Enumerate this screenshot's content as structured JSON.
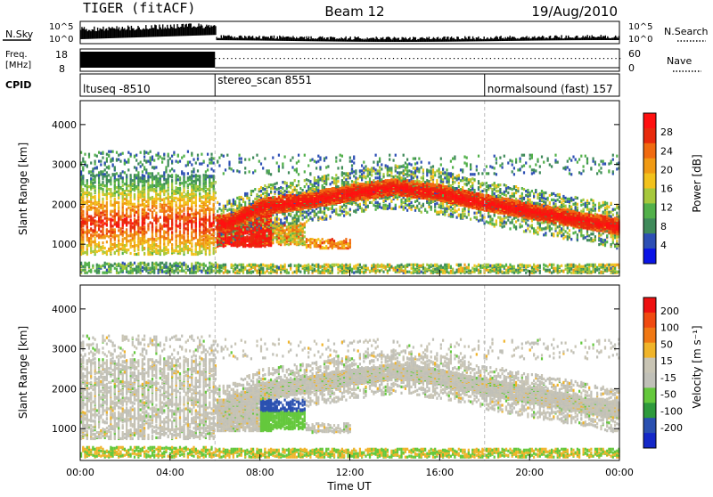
{
  "header": {
    "station": "TIGER (fitACF)",
    "beam": "Beam 12",
    "date": "19/Aug/2010"
  },
  "status_panels": {
    "nsky_label": "N.Sky",
    "nsearch_label": "N.Search",
    "freq_label_line1": "Freq.",
    "freq_label_line2": "[MHz]",
    "nave_label": "Nave",
    "cpid_label": "CPID",
    "noise_ticks": [
      "10^5",
      "10^0"
    ],
    "freq_ticks": [
      "18",
      "8"
    ],
    "nave_ticks": [
      "60",
      "0"
    ],
    "cpid_segments": [
      {
        "label": "ltuseq -8510",
        "start_hour": 0,
        "end_hour": 6
      },
      {
        "label": "stereo_scan 8551",
        "start_hour": 6,
        "end_hour": 18
      },
      {
        "label": "normalsound (fast) 157",
        "start_hour": 18,
        "end_hour": 24
      }
    ]
  },
  "colors": {
    "power_scale": [
      "#0a14e6",
      "#2d4fb4",
      "#3f8a5a",
      "#52b04a",
      "#a6c83c",
      "#f2c21c",
      "#f09a14",
      "#f06a10",
      "#e82a0c",
      "#ff1010"
    ],
    "velocity_scale": [
      "#1428c8",
      "#2a50b0",
      "#2e9a3c",
      "#64c83c",
      "#c0c0b8",
      "#c8c4b4",
      "#f0b42a",
      "#f07814",
      "#f04a10",
      "#ee1010"
    ]
  },
  "chart_data": [
    {
      "type": "heatmap",
      "name": "power",
      "xlabel": "Time UT",
      "ylabel": "Slant Range [km]",
      "xlim": [
        0,
        24
      ],
      "ylim": [
        200,
        4600
      ],
      "x_ticks": [
        "00:00",
        "04:00",
        "08:00",
        "12:00",
        "16:00",
        "20:00",
        "00:00"
      ],
      "y_ticks": [
        "1000",
        "2000",
        "3000",
        "4000"
      ],
      "colorbar_label": "Power [dB]",
      "colorbar_ticks": [
        "28",
        "24",
        "20",
        "16",
        "12",
        "8",
        "4"
      ],
      "colorbar_range": [
        0,
        30
      ],
      "scatter_band": [
        {
          "hour": 6.5,
          "center_km": 1500,
          "width_km": 400
        },
        {
          "hour": 8,
          "center_km": 1900,
          "width_km": 300
        },
        {
          "hour": 10,
          "center_km": 2050,
          "width_km": 250
        },
        {
          "hour": 12,
          "center_km": 2250,
          "width_km": 250
        },
        {
          "hour": 14,
          "center_km": 2400,
          "width_km": 200
        },
        {
          "hour": 16,
          "center_km": 2250,
          "width_km": 250
        },
        {
          "hour": 18,
          "center_km": 2000,
          "width_km": 250
        },
        {
          "hour": 20,
          "center_km": 1800,
          "width_km": 300
        },
        {
          "hour": 22,
          "center_km": 1600,
          "width_km": 300
        },
        {
          "hour": 24,
          "center_km": 1400,
          "width_km": 250
        }
      ]
    },
    {
      "type": "heatmap",
      "name": "velocity",
      "xlabel": "Time UT",
      "ylabel": "Slant Range [km]",
      "xlim": [
        0,
        24
      ],
      "ylim": [
        200,
        4600
      ],
      "x_ticks": [
        "00:00",
        "04:00",
        "08:00",
        "12:00",
        "16:00",
        "20:00",
        "00:00"
      ],
      "y_ticks": [
        "1000",
        "2000",
        "3000",
        "4000"
      ],
      "colorbar_label": "Velocity [m s⁻¹]",
      "colorbar_ticks": [
        "200",
        "100",
        "50",
        "15",
        "-15",
        "-50",
        "-100",
        "-200"
      ],
      "colorbar_range": [
        -250,
        250
      ]
    }
  ]
}
